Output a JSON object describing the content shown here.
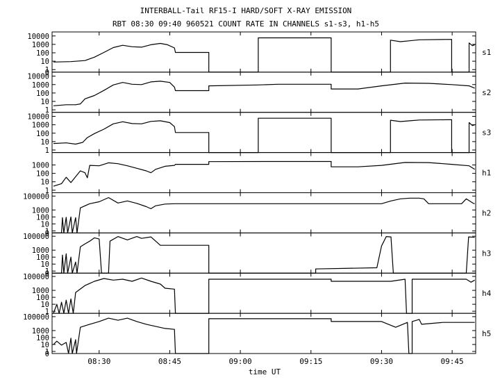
{
  "chart_data": {
    "type": "line",
    "title": "INTERBALL-Tail RF15-I HARD/SOFT X-RAY EMISSION",
    "subtitle": "RBT 08:30 09:40 960521  COUNT RATE IN CHANNELS s1-s3, h1-h5",
    "xlabel": "time UT",
    "x_ticks": [
      "08:30",
      "08:45",
      "09:00",
      "09:15",
      "09:30",
      "09:45"
    ],
    "x_tick_minutes": [
      510,
      525,
      540,
      555,
      570,
      585
    ],
    "xlim": [
      500,
      590
    ],
    "log_y": true,
    "grid": false,
    "panels": [
      {
        "name": "s1",
        "ylim": [
          0.5,
          30000
        ],
        "y_ticks": [
          "10000",
          "1000",
          "100",
          "10",
          "1",
          "0"
        ],
        "y_tick_values": [
          10000,
          1000,
          100,
          10,
          1,
          0.5
        ],
        "points": [
          [
            500.3,
            8
          ],
          [
            504,
            9
          ],
          [
            507,
            12
          ],
          [
            509,
            30
          ],
          [
            511,
            110
          ],
          [
            513,
            420
          ],
          [
            515,
            780
          ],
          [
            517,
            520
          ],
          [
            519,
            470
          ],
          [
            521,
            900
          ],
          [
            523,
            1300
          ],
          [
            524.5,
            900
          ],
          [
            526,
            380
          ],
          [
            526.2,
            110
          ],
          [
            533.3,
            110
          ],
          [
            533.3,
            0.5
          ],
          [
            543.8,
            0.5
          ],
          [
            543.8,
            6000
          ],
          [
            559.3,
            6000
          ],
          [
            559.3,
            0.5
          ],
          [
            571.9,
            0.5
          ],
          [
            571.9,
            3200
          ],
          [
            574,
            2100
          ],
          [
            576,
            2700
          ],
          [
            578,
            3500
          ],
          [
            584.9,
            3900
          ],
          [
            584.9,
            0.5
          ],
          [
            588.6,
            0.5
          ],
          [
            588.6,
            1500
          ],
          [
            589.3,
            700
          ],
          [
            589.8,
            900
          ]
        ]
      },
      {
        "name": "s2",
        "ylim": [
          0.5,
          30000
        ],
        "y_ticks": [
          "10000",
          "1000",
          "100",
          "10",
          "1"
        ],
        "y_tick_values": [
          10000,
          1000,
          100,
          10,
          1
        ],
        "points": [
          [
            500.3,
            3
          ],
          [
            503,
            4
          ],
          [
            505,
            4
          ],
          [
            506,
            5
          ],
          [
            507,
            20
          ],
          [
            509,
            50
          ],
          [
            511,
            200
          ],
          [
            513,
            900
          ],
          [
            515,
            1800
          ],
          [
            517,
            1100
          ],
          [
            519,
            1000
          ],
          [
            521,
            2100
          ],
          [
            523,
            2500
          ],
          [
            525,
            1800
          ],
          [
            526,
            500
          ],
          [
            526.2,
            190
          ],
          [
            533.3,
            190
          ],
          [
            533.3,
            700
          ],
          [
            543.8,
            900
          ],
          [
            548,
            1100
          ],
          [
            559.3,
            1100
          ],
          [
            559.3,
            300
          ],
          [
            565,
            300
          ],
          [
            570,
            700
          ],
          [
            575,
            1500
          ],
          [
            580,
            1400
          ],
          [
            584.9,
            1000
          ],
          [
            588.6,
            700
          ],
          [
            589.8,
            380
          ]
        ]
      },
      {
        "name": "s3",
        "ylim": [
          0.5,
          30000
        ],
        "y_ticks": [
          "10000",
          "1000",
          "100",
          "10",
          "1"
        ],
        "y_tick_values": [
          10000,
          1000,
          100,
          10,
          1
        ],
        "points": [
          [
            500.3,
            6
          ],
          [
            503,
            7
          ],
          [
            505,
            5
          ],
          [
            506.5,
            8
          ],
          [
            507.5,
            30
          ],
          [
            509,
            90
          ],
          [
            511,
            300
          ],
          [
            513,
            1300
          ],
          [
            515,
            2300
          ],
          [
            517,
            1400
          ],
          [
            519,
            1300
          ],
          [
            521,
            2500
          ],
          [
            523,
            3000
          ],
          [
            525,
            1800
          ],
          [
            526,
            600
          ],
          [
            526.2,
            120
          ],
          [
            533.3,
            120
          ],
          [
            533.3,
            0.5
          ],
          [
            543.8,
            0.5
          ],
          [
            543.8,
            6000
          ],
          [
            559.3,
            6000
          ],
          [
            559.3,
            0.5
          ],
          [
            571.9,
            0.5
          ],
          [
            571.9,
            3500
          ],
          [
            574,
            2400
          ],
          [
            576,
            3000
          ],
          [
            578,
            3700
          ],
          [
            584.9,
            4000
          ],
          [
            584.9,
            0.5
          ],
          [
            588.6,
            0.5
          ],
          [
            588.6,
            1800
          ],
          [
            589.3,
            800
          ],
          [
            589.8,
            1000
          ]
        ]
      },
      {
        "name": "h1",
        "ylim": [
          0.5,
          30000
        ],
        "y_ticks": [
          "1000",
          "100",
          "10",
          "1"
        ],
        "y_tick_values": [
          1000,
          100,
          10,
          1
        ],
        "points": [
          [
            500.3,
            3
          ],
          [
            502,
            6
          ],
          [
            503,
            35
          ],
          [
            504,
            8
          ],
          [
            505,
            40
          ],
          [
            506,
            200
          ],
          [
            507,
            120
          ],
          [
            507.5,
            30
          ],
          [
            508,
            900
          ],
          [
            510,
            800
          ],
          [
            512,
            1800
          ],
          [
            514,
            1400
          ],
          [
            516,
            800
          ],
          [
            518,
            400
          ],
          [
            520,
            200
          ],
          [
            521,
            120
          ],
          [
            522,
            300
          ],
          [
            524,
            700
          ],
          [
            526,
            900
          ],
          [
            526.2,
            1200
          ],
          [
            533.3,
            1200
          ],
          [
            533.3,
            2500
          ],
          [
            545,
            2600
          ],
          [
            559.3,
            2600
          ],
          [
            559.3,
            600
          ],
          [
            565,
            600
          ],
          [
            570,
            900
          ],
          [
            575,
            2000
          ],
          [
            580,
            1900
          ],
          [
            584.9,
            1200
          ],
          [
            588.6,
            800
          ],
          [
            589.8,
            300
          ]
        ]
      },
      {
        "name": "h2",
        "ylim": [
          0.5,
          300000
        ],
        "y_ticks": [
          "100000",
          "1000",
          "100",
          "10",
          "1",
          "0"
        ],
        "y_tick_values": [
          100000,
          1000,
          100,
          10,
          1,
          0.5
        ],
        "points": [
          [
            500.3,
            0.5
          ],
          [
            502,
            0.5
          ],
          [
            502.2,
            80
          ],
          [
            502.5,
            0.5
          ],
          [
            503,
            90
          ],
          [
            503.3,
            0.5
          ],
          [
            504,
            100
          ],
          [
            504.3,
            0.5
          ],
          [
            505,
            80
          ],
          [
            505.3,
            0.5
          ],
          [
            506,
            2000
          ],
          [
            508,
            8000
          ],
          [
            510,
            15000
          ],
          [
            512,
            60000
          ],
          [
            514,
            10000
          ],
          [
            516,
            20000
          ],
          [
            518,
            9000
          ],
          [
            520,
            3000
          ],
          [
            521,
            1500
          ],
          [
            522,
            4000
          ],
          [
            524,
            7000
          ],
          [
            526,
            8000
          ],
          [
            530,
            8000
          ],
          [
            542,
            8000
          ],
          [
            550,
            8000
          ],
          [
            565,
            8000
          ],
          [
            570,
            8000
          ],
          [
            572,
            20000
          ],
          [
            574,
            40000
          ],
          [
            576,
            50000
          ],
          [
            578,
            50000
          ],
          [
            579,
            40000
          ],
          [
            580,
            8000
          ],
          [
            585,
            8000
          ],
          [
            587,
            8000
          ],
          [
            588,
            40000
          ],
          [
            589.5,
            9000
          ],
          [
            589.8,
            8000
          ]
        ]
      },
      {
        "name": "h3",
        "ylim": [
          0.5,
          300000
        ],
        "y_ticks": [
          "100000",
          "1000",
          "100",
          "10",
          "1",
          "0"
        ],
        "y_tick_values": [
          100000,
          1000,
          100,
          10,
          1,
          0.5
        ],
        "points": [
          [
            500.3,
            0.5
          ],
          [
            502,
            0.5
          ],
          [
            502.2,
            200
          ],
          [
            502.5,
            0.5
          ],
          [
            503,
            300
          ],
          [
            503.3,
            0.5
          ],
          [
            504,
            100
          ],
          [
            504.3,
            0.5
          ],
          [
            505,
            20
          ],
          [
            505.3,
            0.5
          ],
          [
            506,
            3000
          ],
          [
            507,
            8000
          ],
          [
            508,
            20000
          ],
          [
            509,
            60000
          ],
          [
            510,
            40000
          ],
          [
            510.5,
            0.5
          ],
          [
            512,
            0.5
          ],
          [
            512.3,
            20000
          ],
          [
            514,
            90000
          ],
          [
            516,
            30000
          ],
          [
            518,
            90000
          ],
          [
            519,
            50000
          ],
          [
            521,
            80000
          ],
          [
            523,
            5000
          ],
          [
            526,
            5000
          ],
          [
            533.3,
            5000
          ],
          [
            533.3,
            0.5
          ],
          [
            556,
            0.5
          ],
          [
            556,
            2
          ],
          [
            569,
            3
          ],
          [
            570,
            4000
          ],
          [
            571,
            90000
          ],
          [
            572,
            80000
          ],
          [
            572.5,
            0.5
          ],
          [
            588,
            0.5
          ],
          [
            588.5,
            80000
          ],
          [
            589.8,
            70000
          ]
        ]
      },
      {
        "name": "h4",
        "ylim": [
          0.5,
          300000
        ],
        "y_ticks": [
          "100000",
          "1000",
          "100",
          "10",
          "1"
        ],
        "y_tick_values": [
          100000,
          1000,
          100,
          10,
          1
        ],
        "points": [
          [
            500.3,
            0.5
          ],
          [
            501,
            10
          ],
          [
            501.5,
            0.5
          ],
          [
            502,
            20
          ],
          [
            502.5,
            0.5
          ],
          [
            503,
            40
          ],
          [
            503.5,
            0.5
          ],
          [
            504,
            60
          ],
          [
            504.5,
            0.5
          ],
          [
            505,
            500
          ],
          [
            507,
            5000
          ],
          [
            509,
            20000
          ],
          [
            511,
            50000
          ],
          [
            513,
            30000
          ],
          [
            515,
            40000
          ],
          [
            517,
            20000
          ],
          [
            519,
            60000
          ],
          [
            521,
            20000
          ],
          [
            523,
            8000
          ],
          [
            524,
            2000
          ],
          [
            526,
            1500
          ],
          [
            526.2,
            0.5
          ],
          [
            533.3,
            0.5
          ],
          [
            533.3,
            40000
          ],
          [
            540,
            40000
          ],
          [
            545,
            40000
          ],
          [
            559.3,
            40000
          ],
          [
            559.3,
            20000
          ],
          [
            572,
            20000
          ],
          [
            575,
            40000
          ],
          [
            575.3,
            0.5
          ],
          [
            576.5,
            0.5
          ],
          [
            576.5,
            40000
          ],
          [
            583,
            40000
          ],
          [
            588,
            40000
          ],
          [
            589,
            15000
          ],
          [
            589.8,
            30000
          ]
        ]
      },
      {
        "name": "h5",
        "ylim": [
          0.5,
          300000
        ],
        "y_ticks": [
          "100000",
          "1000",
          "100",
          "10",
          "1",
          "0"
        ],
        "y_tick_values": [
          100000,
          1000,
          100,
          10,
          1,
          0.5
        ],
        "points": [
          [
            500.3,
            10
          ],
          [
            501,
            30
          ],
          [
            502,
            8
          ],
          [
            503,
            20
          ],
          [
            503.5,
            0.5
          ],
          [
            504,
            80
          ],
          [
            504.3,
            0.5
          ],
          [
            505,
            50
          ],
          [
            505.2,
            0.5
          ],
          [
            506,
            3000
          ],
          [
            508,
            8000
          ],
          [
            510,
            20000
          ],
          [
            512,
            60000
          ],
          [
            514,
            30000
          ],
          [
            516,
            60000
          ],
          [
            518,
            20000
          ],
          [
            520,
            8000
          ],
          [
            522,
            4000
          ],
          [
            524,
            2000
          ],
          [
            526,
            1500
          ],
          [
            526.2,
            0.5
          ],
          [
            533.3,
            0.5
          ],
          [
            533.3,
            50000
          ],
          [
            545,
            50000
          ],
          [
            559.3,
            50000
          ],
          [
            559.3,
            20000
          ],
          [
            570,
            20000
          ],
          [
            573,
            3000
          ],
          [
            575.5,
            15000
          ],
          [
            575.8,
            0.5
          ],
          [
            576.5,
            0.5
          ],
          [
            576.5,
            20000
          ],
          [
            578,
            40000
          ],
          [
            578.5,
            8000
          ],
          [
            583,
            15000
          ],
          [
            589.8,
            15000
          ]
        ]
      }
    ]
  }
}
